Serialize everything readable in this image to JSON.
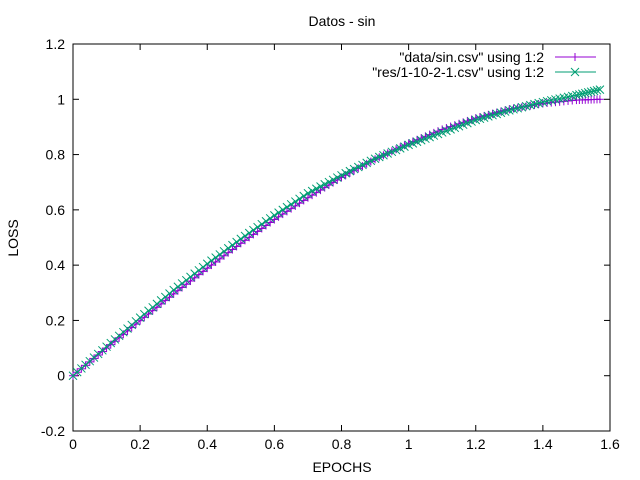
{
  "chart_data": {
    "type": "scatter",
    "title": "Datos - sin",
    "xlabel": "EPOCHS",
    "ylabel": "LOSS",
    "xlim": [
      0,
      1.6
    ],
    "ylim": [
      -0.2,
      1.2
    ],
    "xticks": [
      "0",
      "0.2",
      "0.4",
      "0.6",
      "0.8",
      "1",
      "1.2",
      "1.4",
      "1.6"
    ],
    "yticks": [
      "-0.2",
      "0",
      "0.2",
      "0.4",
      "0.6",
      "0.8",
      "1",
      "1.2"
    ],
    "legend_position": "top-right",
    "grid": false,
    "series": [
      {
        "name": "\"data/sin.csv\" using 1:2",
        "color": "#9400d3",
        "marker": "plus",
        "x": [
          0,
          0.1,
          0.2,
          0.3,
          0.4,
          0.5,
          0.6,
          0.7,
          0.8,
          0.9,
          1.0,
          1.1,
          1.2,
          1.3,
          1.4,
          1.5,
          1.57
        ],
        "y": [
          0,
          0.1,
          0.199,
          0.296,
          0.389,
          0.479,
          0.565,
          0.644,
          0.717,
          0.783,
          0.841,
          0.891,
          0.932,
          0.964,
          0.985,
          0.997,
          1.0
        ]
      },
      {
        "name": "\"res/1-10-2-1.csv\" using 1:2",
        "color": "#009e73",
        "marker": "cross",
        "x": [
          0,
          0.1,
          0.2,
          0.3,
          0.4,
          0.5,
          0.6,
          0.7,
          0.8,
          0.9,
          1.0,
          1.1,
          1.2,
          1.3,
          1.4,
          1.5,
          1.57
        ],
        "y": [
          0,
          0.105,
          0.21,
          0.31,
          0.405,
          0.495,
          0.58,
          0.66,
          0.725,
          0.785,
          0.835,
          0.88,
          0.925,
          0.96,
          0.99,
          1.015,
          1.035
        ]
      }
    ]
  }
}
